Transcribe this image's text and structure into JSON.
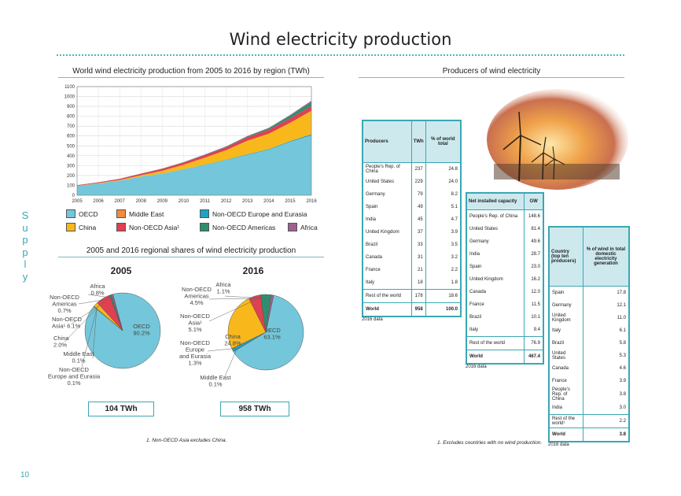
{
  "page": {
    "title": "Wind electricity production",
    "sidebar": "Supply",
    "page_number": "10"
  },
  "area_section": {
    "title": "World wind electricity production from 2005 to 2016 by region (TWh)"
  },
  "producers_section": {
    "title": "Producers of wind electricity"
  },
  "pie_section": {
    "title": "2005 and 2016 regional shares of wind electricity production"
  },
  "legend": [
    {
      "name": "OECD",
      "color": "#74c6da"
    },
    {
      "name": "Middle East",
      "color": "#f08c3c"
    },
    {
      "name": "Non-OECD Europe and Eurasia",
      "color": "#1ea3c8"
    },
    {
      "name": "China",
      "color": "#f8b81c"
    },
    {
      "name": "Non-OECD Asia¹",
      "color": "#e04050"
    },
    {
      "name": "Non-OECD Americas",
      "color": "#2e8f6e"
    },
    {
      "name": "Africa",
      "color": "#a06090"
    }
  ],
  "chart_data": [
    {
      "type": "area",
      "title": "World wind electricity production from 2005 to 2016 by region (TWh)",
      "x": [
        2005,
        2006,
        2007,
        2008,
        2009,
        2010,
        2011,
        2012,
        2013,
        2014,
        2015,
        2016
      ],
      "ylim": [
        0,
        1100
      ],
      "yticks": [
        0,
        100,
        200,
        300,
        400,
        500,
        600,
        700,
        800,
        900,
        1000,
        1100
      ],
      "grid": true,
      "stacked": true,
      "series": [
        {
          "name": "OECD",
          "values": [
            94,
            119,
            148,
            188,
            219,
            262,
            308,
            356,
            410,
            460,
            540,
            605
          ]
        },
        {
          "name": "Middle East",
          "values": [
            0,
            0,
            0,
            0,
            0,
            0,
            0,
            0,
            0,
            0,
            0.5,
            1
          ]
        },
        {
          "name": "Non-OECD Europe and Eurasia",
          "values": [
            0,
            0,
            0.5,
            1,
            1,
            2,
            3,
            4,
            5,
            6,
            8,
            12
          ]
        },
        {
          "name": "China",
          "values": [
            2,
            4,
            6,
            13,
            28,
            45,
            70,
            96,
            138,
            157,
            185,
            237
          ]
        },
        {
          "name": "Non-OECD Asia¹",
          "values": [
            6,
            8,
            11,
            15,
            20,
            22,
            26,
            30,
            35,
            40,
            45,
            50
          ]
        },
        {
          "name": "Non-OECD Americas",
          "values": [
            0.5,
            0.5,
            1,
            2,
            2,
            3,
            4,
            6,
            9,
            15,
            28,
            40
          ]
        },
        {
          "name": "Africa",
          "values": [
            0.5,
            0.5,
            1,
            1,
            1,
            2,
            2,
            3,
            4,
            5,
            7,
            12
          ]
        }
      ]
    },
    {
      "type": "pie",
      "title": "2005",
      "total": "104 TWh",
      "slices": [
        {
          "name": "OECD",
          "value": 90.2,
          "label": "OECD\n90.2%"
        },
        {
          "name": "Middle East",
          "value": 0.1,
          "label": "Middle East\n0.1%"
        },
        {
          "name": "Non-OECD Europe and Eurasia",
          "value": 0.1,
          "label": "Non-OECD\nEurope and Eurasia\n0.1%"
        },
        {
          "name": "China",
          "value": 2.0,
          "label": "China\n2.0%"
        },
        {
          "name": "Non-OECD Asia¹",
          "value": 6.1,
          "label": "Non-OECD\nAsia¹ 6.1%"
        },
        {
          "name": "Non-OECD Americas",
          "value": 0.7,
          "label": "Non-OECD\nAmericas\n0.7%"
        },
        {
          "name": "Africa",
          "value": 0.8,
          "label": "Africa\n0.8%"
        }
      ]
    },
    {
      "type": "pie",
      "title": "2016",
      "total": "958 TWh",
      "slices": [
        {
          "name": "OECD",
          "value": 63.1,
          "label": "OECD\n63.1%"
        },
        {
          "name": "Middle East",
          "value": 0.1,
          "label": "Middle East\n0.1%"
        },
        {
          "name": "Non-OECD Europe and Eurasia",
          "value": 1.3,
          "label": "Non-OECD\nEurope\nand Eurasia\n1.3%"
        },
        {
          "name": "China",
          "value": 24.8,
          "label": "China\n24.8%"
        },
        {
          "name": "Non-OECD Asia¹",
          "value": 5.1,
          "label": "Non-OECD\nAsia¹\n5.1%"
        },
        {
          "name": "Non-OECD Americas",
          "value": 4.5,
          "label": "Non-OECD\nAmericas\n4.5%"
        },
        {
          "name": "Africa",
          "value": 1.1,
          "label": "Africa\n1.1%"
        }
      ]
    },
    {
      "type": "table",
      "headers": [
        "Producers",
        "TWh",
        "% of world total"
      ],
      "rows": [
        [
          "People's Rep. of China",
          "237",
          "24.8"
        ],
        [
          "United States",
          "229",
          "24.0"
        ],
        [
          "Germany",
          "79",
          "8.2"
        ],
        [
          "Spain",
          "49",
          "5.1"
        ],
        [
          "India",
          "45",
          "4.7"
        ],
        [
          "United Kingdom",
          "37",
          "3.9"
        ],
        [
          "Brazil",
          "33",
          "3.5"
        ],
        [
          "Canada",
          "31",
          "3.2"
        ],
        [
          "France",
          "21",
          "2.2"
        ],
        [
          "Italy",
          "18",
          "1.8"
        ]
      ],
      "rest": [
        "Rest of the world",
        "178",
        "18.6"
      ],
      "world": [
        "World",
        "958",
        "100.0"
      ],
      "note": "2016 data"
    },
    {
      "type": "table",
      "headers": [
        "Net installed capacity",
        "GW"
      ],
      "rows": [
        [
          "People's Rep. of China",
          "148.6"
        ],
        [
          "United States",
          "81.4"
        ],
        [
          "Germany",
          "49.6"
        ],
        [
          "India",
          "28.7"
        ],
        [
          "Spain",
          "23.0"
        ],
        [
          "United Kingdom",
          "16.2"
        ],
        [
          "Canada",
          "12.0"
        ],
        [
          "France",
          "11.5"
        ],
        [
          "Brazil",
          "10.1"
        ],
        [
          "Italy",
          "9.4"
        ]
      ],
      "rest": [
        "Rest of the world",
        "76.9"
      ],
      "world": [
        "World",
        "467.4"
      ],
      "note": "2016 data"
    },
    {
      "type": "table",
      "headers": [
        "Country\n(top ten producers)",
        "% of wind in total domestic electricity generation"
      ],
      "rows": [
        [
          "Spain",
          "17.8"
        ],
        [
          "Germany",
          "12.1"
        ],
        [
          "United Kingdom",
          "11.0"
        ],
        [
          "Italy",
          "6.1"
        ],
        [
          "Brazil",
          "5.8"
        ],
        [
          "United States",
          "5.3"
        ],
        [
          "Canada",
          "4.6"
        ],
        [
          "France",
          "3.9"
        ],
        [
          "People's Rep. of China",
          "3.8"
        ],
        [
          "India",
          "3.0"
        ]
      ],
      "rest": [
        "Rest of the world¹",
        "2.2"
      ],
      "world": [
        "World",
        "3.8"
      ],
      "note": "2016 data"
    }
  ],
  "footnotes": {
    "left": "1. Non-OECD Asia excludes China.",
    "right": "1. Excludes countries with no wind production."
  }
}
